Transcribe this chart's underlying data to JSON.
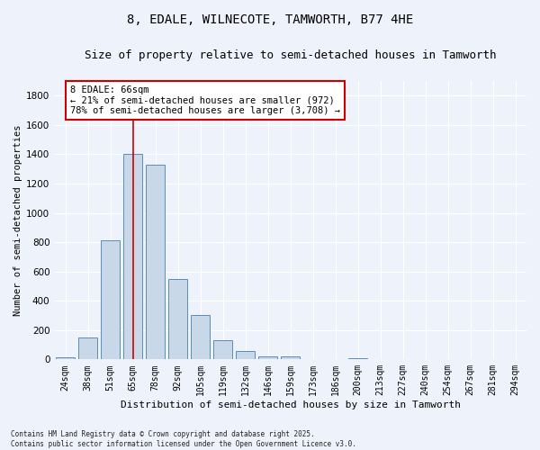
{
  "title": "8, EDALE, WILNECOTE, TAMWORTH, B77 4HE",
  "subtitle": "Size of property relative to semi-detached houses in Tamworth",
  "xlabel": "Distribution of semi-detached houses by size in Tamworth",
  "ylabel": "Number of semi-detached properties",
  "categories": [
    "24sqm",
    "38sqm",
    "51sqm",
    "65sqm",
    "78sqm",
    "92sqm",
    "105sqm",
    "119sqm",
    "132sqm",
    "146sqm",
    "159sqm",
    "173sqm",
    "186sqm",
    "200sqm",
    "213sqm",
    "227sqm",
    "240sqm",
    "254sqm",
    "267sqm",
    "281sqm",
    "294sqm"
  ],
  "values": [
    15,
    150,
    810,
    1400,
    1330,
    550,
    300,
    130,
    55,
    20,
    20,
    0,
    0,
    10,
    0,
    0,
    0,
    0,
    0,
    0,
    5
  ],
  "bar_color": "#c8d8e8",
  "bar_edge_color": "#5b8db8",
  "vline_x_index": 3,
  "vline_color": "#cc0000",
  "annotation_text": "8 EDALE: 66sqm\n← 21% of semi-detached houses are smaller (972)\n78% of semi-detached houses are larger (3,708) →",
  "annotation_box_color": "#ffffff",
  "annotation_box_edge": "#cc0000",
  "ylim": [
    0,
    1900
  ],
  "yticks": [
    0,
    200,
    400,
    600,
    800,
    1000,
    1200,
    1400,
    1600,
    1800
  ],
  "background_color": "#eef2fa",
  "grid_color": "#ffffff",
  "footnote": "Contains HM Land Registry data © Crown copyright and database right 2025.\nContains public sector information licensed under the Open Government Licence v3.0.",
  "title_fontsize": 10,
  "subtitle_fontsize": 9,
  "xlabel_fontsize": 8,
  "ylabel_fontsize": 7.5,
  "tick_fontsize": 7,
  "annot_fontsize": 7.5,
  "footnote_fontsize": 5.5
}
